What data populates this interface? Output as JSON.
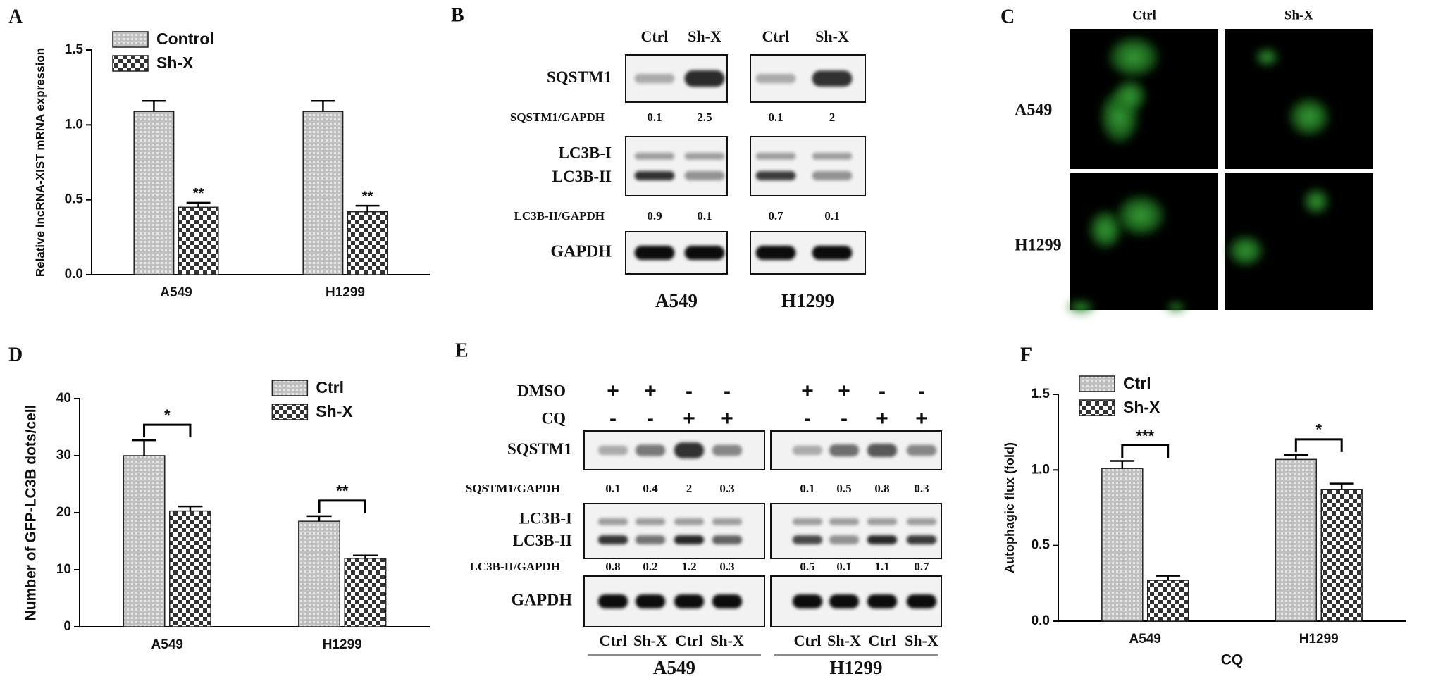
{
  "panel_labels": [
    "A",
    "B",
    "C",
    "D",
    "E",
    "F"
  ],
  "chart_data": [
    {
      "type": "bar",
      "ylabel": "Relative lncRNA-XIST mRNA expression",
      "categories": [
        "A549",
        "H1299"
      ],
      "series": [
        {
          "name": "Control",
          "color": "#8c8c8c",
          "values": [
            1.09,
            1.09
          ],
          "errors": [
            0.07,
            0.07
          ]
        },
        {
          "name": "Sh-X",
          "color": "#333333",
          "values": [
            0.45,
            0.42
          ],
          "errors": [
            0.03,
            0.04
          ],
          "annotations": [
            "**",
            "**"
          ]
        }
      ],
      "ylim": [
        0,
        1.5
      ],
      "yticks": [
        {
          "value": 0,
          "label": "0.0"
        },
        {
          "value": 0.5,
          "label": "0.5"
        },
        {
          "value": 1,
          "label": "1.0"
        },
        {
          "value": 1.5,
          "label": "1.5"
        }
      ],
      "legend": "upper left"
    },
    {
      "type": "bar",
      "ylabel": "Number of GFP-LC3B dots/cell",
      "categories": [
        "A549",
        "H1299"
      ],
      "series": [
        {
          "name": "Ctrl",
          "color": "#8c8c8c",
          "values": [
            30,
            18.5
          ],
          "errors": [
            2.7,
            0.9
          ]
        },
        {
          "name": "Sh-X",
          "color": "#333333",
          "values": [
            20.3,
            12
          ],
          "errors": [
            0.8,
            0.5
          ]
        }
      ],
      "brackets": [
        "*",
        "**"
      ],
      "ylim": [
        0,
        40
      ],
      "yticks": [
        0,
        10,
        20,
        30,
        40
      ],
      "legend": "upper right"
    },
    {
      "type": "bar",
      "ylabel": "Autophagic flux (fold)",
      "xlabel": "CQ",
      "categories": [
        "A549",
        "H1299"
      ],
      "series": [
        {
          "name": "Ctrl",
          "color": "#8c8c8c",
          "values": [
            1.01,
            1.07
          ],
          "errors": [
            0.05,
            0.03
          ]
        },
        {
          "name": "Sh-X",
          "color": "#333333",
          "values": [
            0.27,
            0.87
          ],
          "errors": [
            0.03,
            0.04
          ]
        }
      ],
      "brackets": [
        "***",
        "*"
      ],
      "ylim": [
        0,
        1.5
      ],
      "yticks": [
        {
          "value": 0,
          "label": "0.0"
        },
        {
          "value": 0.5,
          "label": "0.5"
        },
        {
          "value": 1,
          "label": "1.0"
        },
        {
          "value": 1.5,
          "label": "1.5"
        }
      ],
      "legend": "upper left"
    }
  ],
  "blot_b": {
    "columns": [
      "Ctrl",
      "Sh-X",
      "Ctrl",
      "Sh-X"
    ],
    "cell_lines": [
      "A549",
      "H1299"
    ],
    "sqstm1_label": "SQSTM1",
    "sqstm1_ratio_label": "SQSTM1/GAPDH",
    "sqstm1_ratios": [
      0.1,
      2.5,
      0.1,
      2
    ],
    "lc3b_labels": [
      "LC3B-I",
      "LC3B-II"
    ],
    "lc3b_ratio_label": "LC3B-II/GAPDH",
    "lc3b_ratios": [
      0.9,
      0.1,
      0.7,
      0.1
    ],
    "gapdh_label": "GAPDH"
  },
  "microscopy_c": {
    "columns": [
      "Ctrl",
      "Sh-X"
    ],
    "rows": [
      "A549",
      "H1299"
    ]
  },
  "blot_e": {
    "treatments": [
      {
        "label": "DMSO",
        "signs": [
          "+",
          "+",
          "-",
          "-",
          "+",
          "+",
          "-",
          "-"
        ]
      },
      {
        "label": "CQ",
        "signs": [
          "-",
          "-",
          "+",
          "+",
          "-",
          "-",
          "+",
          "+"
        ]
      }
    ],
    "columns": [
      "Ctrl",
      "Sh-X",
      "Ctrl",
      "Sh-X",
      "Ctrl",
      "Sh-X",
      "Ctrl",
      "Sh-X"
    ],
    "cell_lines": [
      "A549",
      "H1299"
    ],
    "sqstm1_label": "SQSTM1",
    "sqstm1_ratio_label": "SQSTM1/GAPDH",
    "sqstm1_ratios": [
      0.1,
      0.4,
      2,
      0.3,
      0.1,
      0.5,
      0.8,
      0.3
    ],
    "lc3b_labels": [
      "LC3B-I",
      "LC3B-II"
    ],
    "lc3b_ratio_label": "LC3B-II/GAPDH",
    "lc3b_ratios": [
      0.8,
      0.2,
      1.2,
      0.3,
      0.5,
      0.1,
      1.1,
      0.7
    ],
    "gapdh_label": "GAPDH"
  }
}
